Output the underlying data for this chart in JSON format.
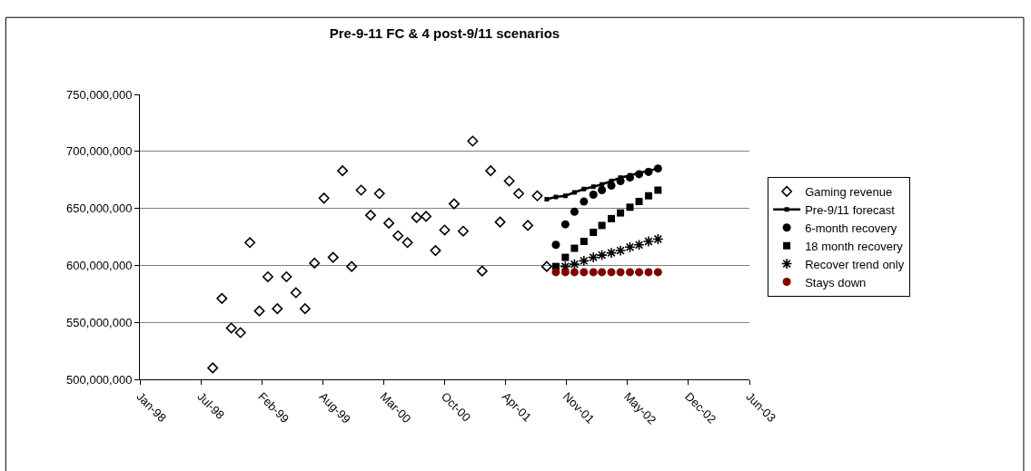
{
  "chart_data": {
    "type": "scatter",
    "title": "Pre-9-11 FC & 4 post-9/11 scenarios",
    "xlim": [
      "1998-01-05",
      "2003-06-28"
    ],
    "xticks": [
      {
        "value": "1998-01-05",
        "label": "Jan-98"
      },
      {
        "value": "1998-07-24",
        "label": "Jul-98"
      },
      {
        "value": "1999-02-09",
        "label": "Feb-99"
      },
      {
        "value": "1999-08-28",
        "label": "Aug-99"
      },
      {
        "value": "2000-03-15",
        "label": "Mar-00"
      },
      {
        "value": "2000-10-01",
        "label": "Oct-00"
      },
      {
        "value": "2001-04-19",
        "label": "Apr-01"
      },
      {
        "value": "2001-11-05",
        "label": "Nov-01"
      },
      {
        "value": "2002-05-24",
        "label": "May-02"
      },
      {
        "value": "2002-12-10",
        "label": "Dec-02"
      },
      {
        "value": "2003-06-28",
        "label": "Jun-03"
      }
    ],
    "ylim": [
      500000000,
      750000000
    ],
    "yticks": [
      {
        "value": 500000000,
        "label": "500,000,000"
      },
      {
        "value": 550000000,
        "label": "550,000,000"
      },
      {
        "value": 600000000,
        "label": "600,000,000"
      },
      {
        "value": 650000000,
        "label": "650,000,000"
      },
      {
        "value": 700000000,
        "label": "700,000,000"
      },
      {
        "value": 750000000,
        "label": "750,000,000"
      }
    ],
    "grid": "y",
    "legend": "right",
    "series": [
      {
        "name": "Gaming revenue",
        "marker": "diamond",
        "color": "#000000",
        "x": [
          "1998-09",
          "1998-10",
          "1998-11",
          "1998-12",
          "1999-01",
          "1999-02",
          "1999-03",
          "1999-04",
          "1999-05",
          "1999-06",
          "1999-07",
          "1999-08",
          "1999-09",
          "1999-10",
          "1999-11",
          "1999-12",
          "2000-01",
          "2000-02",
          "2000-03",
          "2000-04",
          "2000-05",
          "2000-06",
          "2000-07",
          "2000-08",
          "2000-09",
          "2000-10",
          "2000-11",
          "2000-12",
          "2001-01",
          "2001-02",
          "2001-03",
          "2001-04",
          "2001-05",
          "2001-06",
          "2001-07",
          "2001-08",
          "2001-09"
        ],
        "values": [
          510000000,
          571000000,
          545000000,
          541000000,
          620000000,
          560000000,
          590000000,
          562000000,
          590000000,
          576000000,
          562000000,
          602000000,
          659000000,
          607000000,
          683000000,
          599000000,
          666000000,
          644000000,
          663000000,
          637000000,
          626000000,
          620000000,
          642000000,
          643000000,
          613000000,
          631000000,
          654000000,
          630000000,
          709000000,
          595000000,
          683000000,
          638000000,
          674000000,
          663000000,
          635000000,
          661000000,
          599000000
        ]
      },
      {
        "name": "Pre-9/11 forecast",
        "type": "line",
        "marker": "square",
        "line_style": "solid",
        "color": "#000000",
        "x": [
          "2001-09",
          "2001-10",
          "2001-11",
          "2001-12",
          "2002-01",
          "2002-02",
          "2002-03",
          "2002-04",
          "2002-05",
          "2002-06",
          "2002-07",
          "2002-08",
          "2002-09"
        ],
        "values": [
          658000000,
          660000000,
          661000000,
          664000000,
          667000000,
          669000000,
          671000000,
          674000000,
          677000000,
          679000000,
          681000000,
          683000000,
          685000000
        ]
      },
      {
        "name": "6-month recovery",
        "marker": "circle",
        "color": "#000000",
        "x": [
          "2001-10",
          "2001-11",
          "2001-12",
          "2002-01",
          "2002-02",
          "2002-03",
          "2002-04",
          "2002-05",
          "2002-06",
          "2002-07",
          "2002-08",
          "2002-09"
        ],
        "values": [
          618000000,
          636000000,
          647000000,
          656000000,
          662000000,
          666000000,
          670000000,
          674000000,
          677000000,
          680000000,
          682000000,
          685000000
        ]
      },
      {
        "name": "18 month recovery",
        "marker": "square",
        "color": "#000000",
        "x": [
          "2001-10",
          "2001-11",
          "2001-12",
          "2002-01",
          "2002-02",
          "2002-03",
          "2002-04",
          "2002-05",
          "2002-06",
          "2002-07",
          "2002-08",
          "2002-09"
        ],
        "values": [
          599000000,
          607000000,
          615000000,
          621000000,
          629000000,
          635000000,
          641000000,
          646000000,
          651000000,
          656000000,
          661000000,
          666000000
        ]
      },
      {
        "name": "Recover trend only",
        "marker": "cross",
        "color": "#000000",
        "x": [
          "2001-11",
          "2001-12",
          "2002-01",
          "2002-02",
          "2002-03",
          "2002-04",
          "2002-05",
          "2002-06",
          "2002-07",
          "2002-08",
          "2002-09"
        ],
        "values": [
          599000000,
          601000000,
          604000000,
          607000000,
          609000000,
          611000000,
          613000000,
          616000000,
          618000000,
          621000000,
          623000000
        ]
      },
      {
        "name": "Stays down",
        "marker": "circle",
        "color": "#800000",
        "x": [
          "2001-10",
          "2001-11",
          "2001-12",
          "2002-01",
          "2002-02",
          "2002-03",
          "2002-04",
          "2002-05",
          "2002-06",
          "2002-07",
          "2002-08",
          "2002-09"
        ],
        "values": [
          594000000,
          594000000,
          594000000,
          594000000,
          594000000,
          594000000,
          594000000,
          594000000,
          594000000,
          594000000,
          594000000,
          594000000
        ]
      }
    ]
  }
}
